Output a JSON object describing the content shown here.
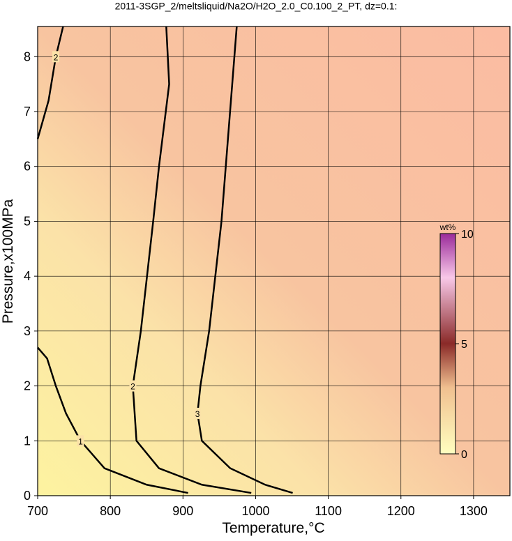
{
  "chart_data": {
    "type": "contour",
    "title": "2011-3SGP_2/meltsliquid/Na2O/H2O_2.0_C0.100_2_PT, dz=0.1:",
    "x_label": "Temperature,°C",
    "y_label": "Pressure,x100MPa",
    "xlim": [
      700,
      1350
    ],
    "ylim": [
      0,
      8.55
    ],
    "xticks": [
      700,
      800,
      900,
      1000,
      1100,
      1200,
      1300
    ],
    "yticks": [
      0,
      1,
      2,
      3,
      4,
      5,
      6,
      7,
      8
    ],
    "grid": true,
    "series": [
      {
        "name": "1",
        "color": "#000000",
        "x": [
          700,
          713,
          725,
          739,
          759,
          792,
          850,
          907
        ],
        "y": [
          2.7,
          2.5,
          2.0,
          1.5,
          1.0,
          0.5,
          0.2,
          0.05
        ]
      },
      {
        "name": "2",
        "color": "#000000",
        "x": [
          877,
          881,
          867,
          859,
          842,
          831,
          836,
          867,
          926,
          994
        ],
        "y": [
          8.55,
          7.5,
          6.0,
          5.0,
          3.0,
          2.0,
          1.0,
          0.5,
          0.2,
          0.05
        ]
      },
      {
        "name": "2",
        "color": "#000000",
        "x": [
          700,
          715,
          725,
          735
        ],
        "y": [
          6.5,
          7.2,
          8.0,
          8.55
        ]
      },
      {
        "name": "3",
        "color": "#000000",
        "x": [
          974,
          953,
          936,
          924,
          920,
          926,
          965,
          1013,
          1051
        ],
        "y": [
          8.55,
          5.0,
          3.0,
          2.0,
          1.5,
          1.0,
          0.5,
          0.2,
          0.05
        ]
      }
    ],
    "colorbar": {
      "label": "wt%",
      "lim": [
        0,
        10
      ],
      "ticks": [
        0,
        5,
        10
      ]
    }
  }
}
